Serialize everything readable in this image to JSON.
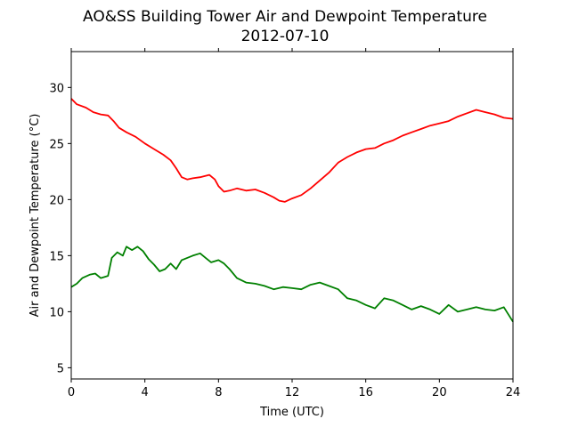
{
  "chart_data": {
    "type": "line",
    "title": "AO&SS Building Tower Air and Dewpoint Temperature",
    "subtitle": "2012-07-10",
    "xlabel": "Time (UTC)",
    "ylabel": "Air and Dewpoint Temperature (°C)",
    "xlim": [
      0,
      24
    ],
    "ylim": [
      4,
      33.2
    ],
    "xticks": [
      0,
      4,
      8,
      12,
      16,
      20,
      24
    ],
    "yticks": [
      5,
      10,
      15,
      20,
      25,
      30
    ],
    "grid": false,
    "legend": "none",
    "series": [
      {
        "color": "#ff0000",
        "x": [
          0,
          0.3,
          0.8,
          1.2,
          1.6,
          2.0,
          2.3,
          2.6,
          3.0,
          3.5,
          4.0,
          4.5,
          5.0,
          5.4,
          5.7,
          6.0,
          6.3,
          6.6,
          7.0,
          7.5,
          7.8,
          8.0,
          8.3,
          8.6,
          9.0,
          9.5,
          10.0,
          10.5,
          11.0,
          11.3,
          11.6,
          12.0,
          12.5,
          13.0,
          13.5,
          14.0,
          14.5,
          15.0,
          15.5,
          16.0,
          16.5,
          17.0,
          17.5,
          18.0,
          18.5,
          19.0,
          19.5,
          20.0,
          20.5,
          21.0,
          21.5,
          22.0,
          22.5,
          23.0,
          23.5,
          24.0
        ],
        "values": [
          29.0,
          28.5,
          28.2,
          27.8,
          27.6,
          27.5,
          27.0,
          26.4,
          26.0,
          25.6,
          25.0,
          24.5,
          24.0,
          23.5,
          22.8,
          22.0,
          21.8,
          21.9,
          22.0,
          22.2,
          21.8,
          21.2,
          20.7,
          20.8,
          21.0,
          20.8,
          20.9,
          20.6,
          20.2,
          19.9,
          19.8,
          20.1,
          20.4,
          21.0,
          21.7,
          22.4,
          23.3,
          23.8,
          24.2,
          24.5,
          24.6,
          25.0,
          25.3,
          25.7,
          26.0,
          26.3,
          26.6,
          26.8,
          27.0,
          27.4,
          27.7,
          28.0,
          27.8,
          27.6,
          27.3,
          27.2
        ]
      },
      {
        "color": "#008000",
        "x": [
          0,
          0.3,
          0.6,
          1.0,
          1.3,
          1.6,
          2.0,
          2.2,
          2.5,
          2.8,
          3.0,
          3.3,
          3.6,
          3.9,
          4.2,
          4.5,
          4.8,
          5.1,
          5.4,
          5.7,
          6.0,
          6.3,
          6.6,
          7.0,
          7.3,
          7.6,
          8.0,
          8.3,
          8.6,
          9.0,
          9.5,
          10.0,
          10.5,
          11.0,
          11.5,
          12.0,
          12.5,
          13.0,
          13.5,
          14.0,
          14.5,
          15.0,
          15.5,
          16.0,
          16.5,
          17.0,
          17.5,
          18.0,
          18.5,
          19.0,
          19.5,
          20.0,
          20.5,
          21.0,
          21.5,
          22.0,
          22.5,
          23.0,
          23.5,
          24.0
        ],
        "values": [
          12.2,
          12.5,
          13.0,
          13.3,
          13.4,
          13.0,
          13.2,
          14.8,
          15.3,
          15.0,
          15.8,
          15.5,
          15.8,
          15.4,
          14.7,
          14.2,
          13.6,
          13.8,
          14.3,
          13.8,
          14.6,
          14.8,
          15.0,
          15.2,
          14.8,
          14.4,
          14.6,
          14.3,
          13.8,
          13.0,
          12.6,
          12.5,
          12.3,
          12.0,
          12.2,
          12.1,
          12.0,
          12.4,
          12.6,
          12.3,
          12.0,
          11.2,
          11.0,
          10.6,
          10.3,
          11.2,
          11.0,
          10.6,
          10.2,
          10.5,
          10.2,
          9.8,
          10.6,
          10.0,
          10.2,
          10.4,
          10.2,
          10.1,
          10.4,
          9.1
        ]
      }
    ]
  }
}
